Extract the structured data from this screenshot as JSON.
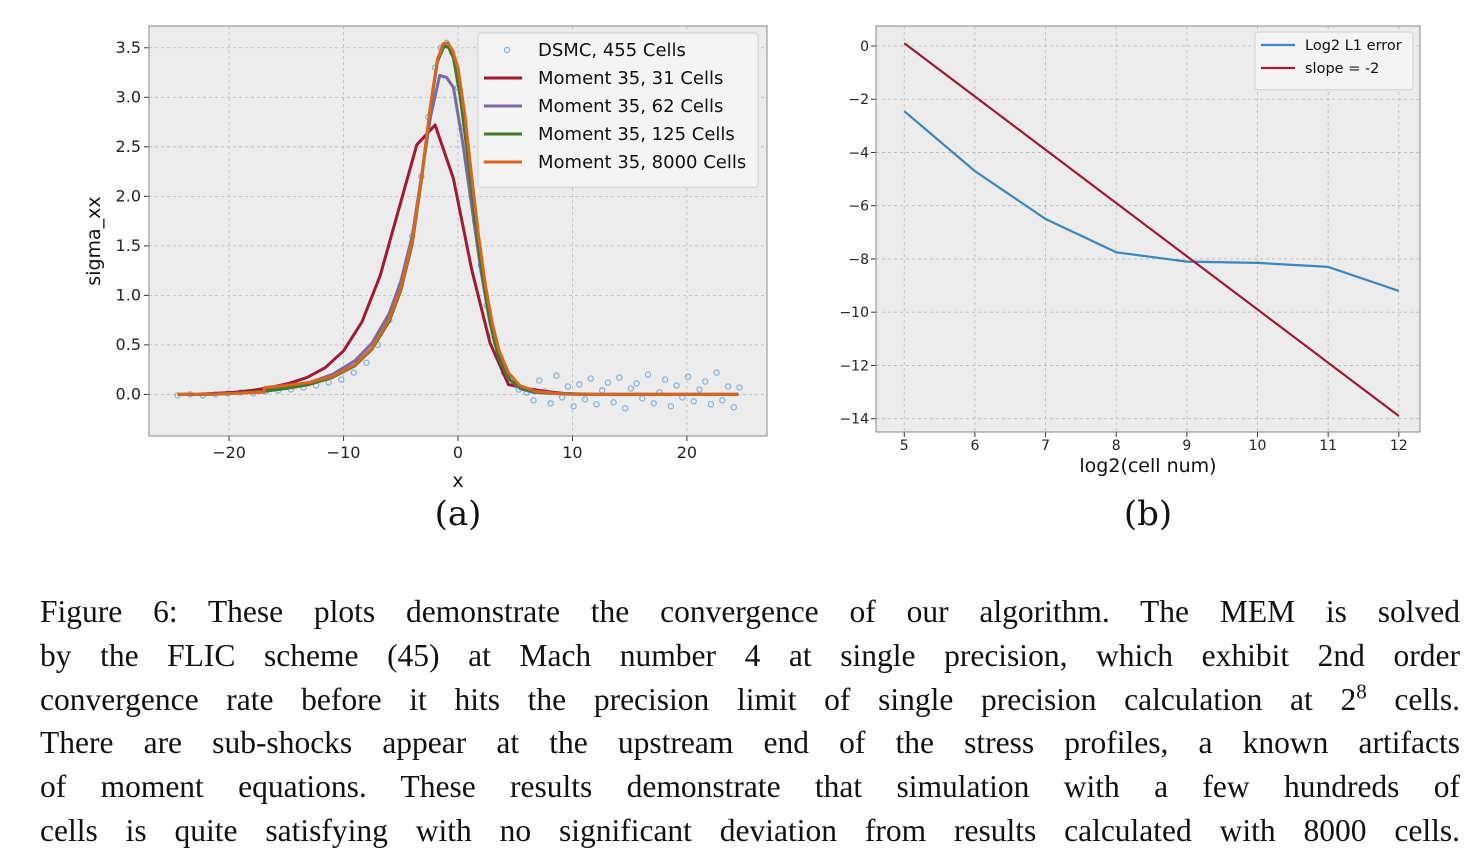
{
  "chart_data": [
    {
      "type": "line",
      "panel_label": "(a)",
      "xlabel": "x",
      "ylabel": "sigma_xx",
      "xlim": [
        -27,
        27
      ],
      "ylim": [
        -0.42,
        3.72
      ],
      "xticks": [
        -20,
        -10,
        0,
        10,
        20
      ],
      "xtick_labels": [
        "−20",
        "−10",
        "0",
        "10",
        "20"
      ],
      "yticks": [
        0.0,
        0.5,
        1.0,
        1.5,
        2.0,
        2.5,
        3.0,
        3.5
      ],
      "ytick_labels": [
        "0.0",
        "0.5",
        "1.0",
        "1.5",
        "2.0",
        "2.5",
        "3.0",
        "3.5"
      ],
      "grid": true,
      "legend_position": "top-right",
      "series": [
        {
          "name": "DSMC, 455 Cells",
          "kind": "scatter",
          "color": "#7fb2d6",
          "x": [
            -24.5,
            -23.4,
            -22.3,
            -21.2,
            -20.1,
            -19.0,
            -17.9,
            -16.8,
            -15.7,
            -14.6,
            -13.5,
            -12.4,
            -11.3,
            -10.2,
            -9.1,
            -8.0,
            -7.0,
            -6.0,
            -5.0,
            -4.0,
            -3.2,
            -2.6,
            -2.0,
            -1.5,
            -1.0,
            -0.5,
            0.0,
            0.5,
            1.0,
            1.5,
            2.0,
            2.5,
            3.0,
            3.5,
            4.0,
            4.6,
            5.3,
            6.0,
            6.6,
            7.1,
            7.6,
            8.1,
            8.6,
            9.1,
            9.6,
            10.1,
            10.6,
            11.1,
            11.6,
            12.1,
            12.6,
            13.1,
            13.6,
            14.1,
            14.6,
            15.1,
            15.6,
            16.1,
            16.6,
            17.1,
            17.6,
            18.1,
            18.6,
            19.1,
            19.6,
            20.1,
            20.6,
            21.1,
            21.6,
            22.1,
            22.6,
            23.1,
            23.6,
            24.1,
            24.6
          ],
          "y": [
            -0.01,
            0.0,
            -0.01,
            0.0,
            0.01,
            0.02,
            0.01,
            0.03,
            0.04,
            0.05,
            0.07,
            0.09,
            0.12,
            0.15,
            0.22,
            0.32,
            0.5,
            0.75,
            1.1,
            1.6,
            2.2,
            2.8,
            3.3,
            3.5,
            3.55,
            3.45,
            3.1,
            2.7,
            2.25,
            1.75,
            1.3,
            0.9,
            0.6,
            0.38,
            0.22,
            0.12,
            0.05,
            0.02,
            -0.06,
            0.14,
            0.03,
            -0.09,
            0.19,
            -0.03,
            0.08,
            -0.12,
            0.1,
            -0.05,
            0.16,
            -0.1,
            0.04,
            0.12,
            -0.08,
            0.17,
            -0.14,
            0.06,
            0.11,
            -0.04,
            0.2,
            -0.09,
            0.02,
            0.15,
            -0.12,
            0.09,
            -0.03,
            0.18,
            -0.07,
            0.05,
            0.13,
            -0.1,
            0.22,
            -0.06,
            0.08,
            -0.13,
            0.07
          ]
        },
        {
          "name": "Moment 35, 31 Cells",
          "kind": "line",
          "color": "#a01a36",
          "x": [
            -24.5,
            -22.8,
            -21.2,
            -19.6,
            -18.0,
            -16.4,
            -14.8,
            -13.2,
            -11.6,
            -10.0,
            -8.4,
            -6.8,
            -5.2,
            -3.6,
            -2.0,
            -0.4,
            1.2,
            2.8,
            4.4,
            6.0,
            7.6,
            9.2,
            10.8,
            12.4,
            14.0,
            15.6,
            17.2,
            18.8,
            20.4,
            22.0,
            23.6,
            24.5
          ],
          "y": [
            0.0,
            0.0,
            0.01,
            0.02,
            0.04,
            0.07,
            0.11,
            0.17,
            0.27,
            0.44,
            0.73,
            1.2,
            1.86,
            2.52,
            2.72,
            2.18,
            1.26,
            0.52,
            0.1,
            0.06,
            0.03,
            0.01,
            0.0,
            0.0,
            0.0,
            0.0,
            0.0,
            0.0,
            0.0,
            0.0,
            0.0,
            0.0
          ]
        },
        {
          "name": "Moment 35, 62 Cells",
          "kind": "line",
          "color": "#7c6aa8",
          "x": [
            -24.5,
            -22.0,
            -19.5,
            -17.0,
            -15.0,
            -13.0,
            -11.0,
            -9.0,
            -7.5,
            -6.0,
            -5.0,
            -4.0,
            -3.2,
            -2.4,
            -1.6,
            -1.0,
            -0.4,
            0.4,
            1.2,
            2.0,
            2.8,
            3.6,
            4.4,
            5.4,
            6.6,
            8.0,
            10.0,
            13.0,
            17.0,
            21.0,
            24.5
          ],
          "y": [
            0.0,
            0.0,
            0.01,
            0.03,
            0.07,
            0.12,
            0.2,
            0.34,
            0.52,
            0.82,
            1.14,
            1.6,
            2.2,
            2.8,
            3.22,
            3.2,
            3.1,
            2.55,
            1.9,
            1.25,
            0.72,
            0.36,
            0.16,
            0.06,
            0.02,
            0.01,
            0.0,
            0.0,
            0.0,
            0.0,
            0.0
          ]
        },
        {
          "name": "Moment 35, 125 Cells",
          "kind": "line",
          "color": "#3e7a2a",
          "x": [
            -24.5,
            -22.0,
            -19.5,
            -17.0,
            -15.0,
            -13.0,
            -11.0,
            -9.0,
            -7.5,
            -6.0,
            -5.0,
            -4.0,
            -3.2,
            -2.4,
            -1.8,
            -1.2,
            -0.8,
            -0.4,
            0.2,
            0.8,
            1.4,
            2.0,
            2.6,
            3.2,
            3.8,
            4.6,
            5.6,
            7.0,
            9.0,
            12.0,
            16.0,
            20.0,
            24.5
          ],
          "y": [
            0.0,
            0.0,
            0.01,
            0.03,
            0.06,
            0.1,
            0.17,
            0.29,
            0.46,
            0.74,
            1.05,
            1.52,
            2.16,
            2.9,
            3.36,
            3.52,
            3.5,
            3.4,
            3.0,
            2.45,
            1.85,
            1.3,
            0.86,
            0.52,
            0.3,
            0.14,
            0.06,
            0.02,
            0.01,
            0.0,
            0.0,
            0.0,
            0.0
          ]
        },
        {
          "name": "Moment 35, 8000 Cells",
          "kind": "line",
          "color": "#d9661c",
          "x": [
            -24.5,
            -22.0,
            -19.5,
            -17.5,
            -17.0,
            -16.9,
            -15.0,
            -13.0,
            -11.0,
            -9.0,
            -7.5,
            -6.0,
            -5.0,
            -4.0,
            -3.2,
            -2.4,
            -1.8,
            -1.3,
            -0.9,
            -0.5,
            0.0,
            0.6,
            1.2,
            1.8,
            2.4,
            3.0,
            3.6,
            4.4,
            5.4,
            6.8,
            8.6,
            11.0,
            15.0,
            20.0,
            24.5
          ],
          "y": [
            0.0,
            0.0,
            0.01,
            0.02,
            0.02,
            0.07,
            0.09,
            0.12,
            0.18,
            0.3,
            0.47,
            0.76,
            1.07,
            1.55,
            2.18,
            2.92,
            3.38,
            3.54,
            3.55,
            3.48,
            3.3,
            2.82,
            2.2,
            1.6,
            1.1,
            0.72,
            0.44,
            0.22,
            0.09,
            0.03,
            0.01,
            0.0,
            0.0,
            0.0,
            0.0
          ]
        }
      ]
    },
    {
      "type": "line",
      "panel_label": "(b)",
      "xlabel": "log2(cell num)",
      "ylabel": "",
      "xlim": [
        4.6,
        12.3
      ],
      "ylim": [
        -14.5,
        0.75
      ],
      "xticks": [
        5,
        6,
        7,
        8,
        9,
        10,
        11,
        12
      ],
      "xtick_labels": [
        "5",
        "6",
        "7",
        "8",
        "9",
        "10",
        "11",
        "12"
      ],
      "yticks": [
        0,
        -2,
        -4,
        -6,
        -8,
        -10,
        -12,
        -14
      ],
      "ytick_labels": [
        "0",
        "−2",
        "−4",
        "−6",
        "−8",
        "−10",
        "−12",
        "−14"
      ],
      "grid": true,
      "legend_position": "top-right",
      "series": [
        {
          "name": "Log2 L1 error",
          "kind": "line",
          "color": "#3b86bd",
          "x": [
            5,
            6,
            7,
            8,
            9,
            10,
            11,
            12
          ],
          "y": [
            -2.45,
            -4.7,
            -6.5,
            -7.75,
            -8.1,
            -8.15,
            -8.3,
            -9.2
          ]
        },
        {
          "name": "slope = -2",
          "kind": "line",
          "color": "#a01a36",
          "x": [
            5,
            12
          ],
          "y": [
            0.1,
            -13.9
          ]
        }
      ]
    }
  ],
  "caption": {
    "lines": [
      "Figure 6: These plots demonstrate the convergence of our algorithm. The MEM is solved",
      "by the FLIC scheme (45) at Mach number 4 at single precision, which exhibit 2nd order"
    ],
    "line3_before": "convergence rate before it hits the precision limit of single precision calculation at 2",
    "line3_sup": "8",
    "line3_after": " cells.",
    "lines_rest": [
      "There are sub-shocks appear at the upstream end of the stress profiles, a known artifacts",
      "of moment equations. These results demonstrate that simulation with a few hundreds of",
      "cells is quite satisfying with no significant deviation from results calculated with 8000 cells."
    ]
  }
}
